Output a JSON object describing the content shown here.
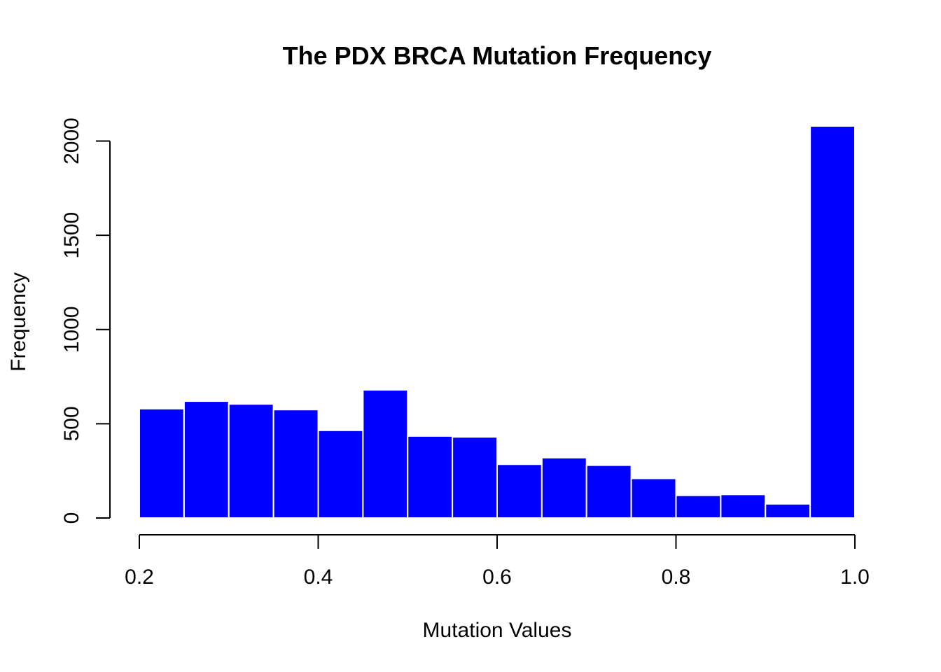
{
  "chart_data": {
    "type": "bar",
    "title": "The PDX BRCA Mutation Frequency",
    "xlabel": "Mutation Values",
    "ylabel": "Frequency",
    "bin_edges": [
      0.2,
      0.25,
      0.3,
      0.35,
      0.4,
      0.45,
      0.5,
      0.55,
      0.6,
      0.65,
      0.7,
      0.75,
      0.8,
      0.85,
      0.9,
      0.95,
      1.0
    ],
    "values": [
      580,
      620,
      605,
      575,
      465,
      680,
      435,
      430,
      285,
      320,
      280,
      210,
      120,
      125,
      75,
      2080
    ],
    "xlim": [
      0.2,
      1.0
    ],
    "ylim": [
      0,
      2080
    ],
    "x_ticks": [
      {
        "value": 0.2,
        "label": "0.2"
      },
      {
        "value": 0.4,
        "label": "0.4"
      },
      {
        "value": 0.6,
        "label": "0.6"
      },
      {
        "value": 0.8,
        "label": "0.8"
      },
      {
        "value": 1.0,
        "label": "1.0"
      }
    ],
    "y_ticks": [
      {
        "value": 0,
        "label": "0"
      },
      {
        "value": 500,
        "label": "500"
      },
      {
        "value": 1000,
        "label": "1000"
      },
      {
        "value": 1500,
        "label": "1500"
      },
      {
        "value": 2000,
        "label": "2000"
      }
    ],
    "bar_color": "#0000FF",
    "bar_border_color": "#FFFFFF",
    "grid": false,
    "legend": "none"
  }
}
